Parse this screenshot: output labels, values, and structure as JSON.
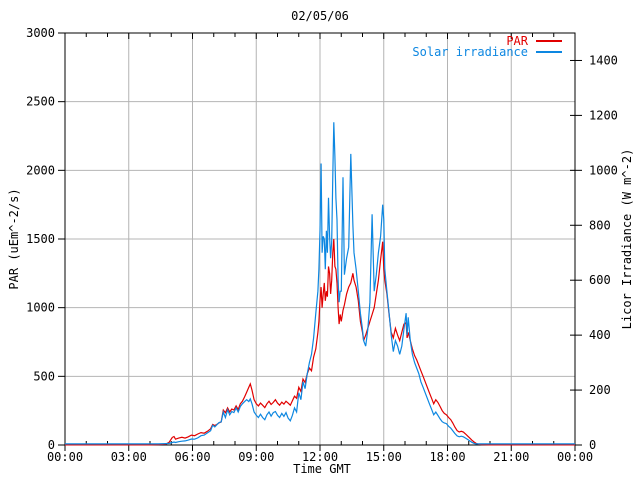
{
  "title": "02/05/06",
  "colors": {
    "par": "#e10000",
    "solar": "#0d87e1",
    "grid": "#b4b4b4",
    "frame": "#000000",
    "background": "#ffffff"
  },
  "legend": {
    "entries": [
      {
        "label": "PAR",
        "color": "#e10000"
      },
      {
        "label": "Solar irradiance",
        "color": "#0d87e1"
      }
    ]
  },
  "chart_data": {
    "type": "line",
    "title": "02/05/06",
    "xlabel": "Time GMT",
    "ylabel_left": "PAR (uEm^-2/s)",
    "ylabel_right": "Licor Irradiance (W m^-2)",
    "x_ticks": [
      "00:00",
      "03:00",
      "06:00",
      "09:00",
      "12:00",
      "15:00",
      "18:00",
      "21:00",
      "00:00"
    ],
    "x_tick_hours": [
      0,
      3,
      6,
      9,
      12,
      15,
      18,
      21,
      24
    ],
    "x_range_hours": [
      0,
      24
    ],
    "y_left_ticks": [
      0,
      500,
      1000,
      1500,
      2000,
      2500,
      3000
    ],
    "y_left_range": [
      0,
      3000
    ],
    "y_right_ticks": [
      0,
      200,
      400,
      600,
      800,
      1000,
      1200,
      1400
    ],
    "y_right_range": [
      0,
      1500
    ],
    "grid": true,
    "legend_position": "top-right-inside",
    "x_hours": [
      0,
      0.5,
      1,
      1.5,
      2,
      2.5,
      3,
      3.5,
      4,
      4.4,
      4.75,
      4.9,
      5.05,
      5.13,
      5.2,
      5.35,
      5.5,
      5.65,
      5.8,
      5.95,
      6.1,
      6.25,
      6.4,
      6.55,
      6.7,
      6.85,
      6.95,
      7.05,
      7.15,
      7.25,
      7.35,
      7.45,
      7.55,
      7.65,
      7.75,
      7.85,
      7.95,
      8.05,
      8.15,
      8.25,
      8.35,
      8.45,
      8.55,
      8.65,
      8.72,
      8.8,
      8.9,
      9.0,
      9.1,
      9.2,
      9.3,
      9.4,
      9.5,
      9.6,
      9.7,
      9.8,
      9.9,
      10.0,
      10.1,
      10.2,
      10.3,
      10.4,
      10.5,
      10.6,
      10.7,
      10.8,
      10.9,
      11.0,
      11.1,
      11.2,
      11.3,
      11.4,
      11.5,
      11.6,
      11.7,
      11.8,
      11.9,
      11.95,
      12.0,
      12.05,
      12.1,
      12.15,
      12.2,
      12.25,
      12.3,
      12.35,
      12.4,
      12.45,
      12.5,
      12.55,
      12.6,
      12.65,
      12.7,
      12.75,
      12.8,
      12.85,
      12.9,
      12.95,
      13.0,
      13.08,
      13.15,
      13.25,
      13.35,
      13.45,
      13.55,
      13.6,
      13.7,
      13.8,
      13.9,
      14.0,
      14.05,
      14.15,
      14.25,
      14.35,
      14.45,
      14.55,
      14.65,
      14.75,
      14.85,
      14.95,
      15.0,
      15.05,
      15.15,
      15.25,
      15.35,
      15.45,
      15.55,
      15.65,
      15.75,
      15.85,
      15.95,
      16.05,
      16.1,
      16.15,
      16.25,
      16.35,
      16.45,
      16.55,
      16.65,
      16.75,
      16.85,
      16.95,
      17.05,
      17.15,
      17.25,
      17.35,
      17.45,
      17.55,
      17.65,
      17.75,
      17.85,
      17.95,
      18.05,
      18.15,
      18.25,
      18.35,
      18.45,
      18.55,
      18.65,
      18.75,
      18.85,
      18.95,
      19.05,
      19.15,
      19.25,
      19.35,
      19.45,
      19.6,
      20.0,
      20.5,
      21.0,
      21.5,
      22.0,
      22.5,
      23.0,
      23.5,
      24.0
    ],
    "series": [
      {
        "name": "PAR",
        "axis": "left",
        "color": "#e10000",
        "units": "uEm^-2/s",
        "values": [
          1,
          1,
          1,
          1,
          1,
          1,
          1,
          1,
          1,
          2,
          6,
          20,
          55,
          62,
          42,
          50,
          56,
          50,
          60,
          72,
          68,
          80,
          90,
          86,
          100,
          118,
          150,
          142,
          150,
          162,
          168,
          255,
          235,
          270,
          240,
          262,
          255,
          285,
          258,
          300,
          318,
          350,
          385,
          420,
          445,
          400,
          330,
          300,
          285,
          305,
          290,
          272,
          300,
          318,
          295,
          310,
          330,
          305,
          290,
          312,
          298,
          318,
          305,
          290,
          322,
          355,
          340,
          420,
          390,
          480,
          455,
          520,
          560,
          540,
          640,
          700,
          820,
          900,
          1050,
          1150,
          1000,
          1100,
          1180,
          1050,
          1120,
          1080,
          1300,
          1250,
          1100,
          1200,
          1400,
          1500,
          1300,
          1280,
          1180,
          1000,
          880,
          950,
          900,
          980,
          1020,
          1100,
          1150,
          1180,
          1250,
          1200,
          1150,
          1050,
          900,
          820,
          760,
          800,
          850,
          900,
          950,
          1000,
          1100,
          1200,
          1350,
          1480,
          1280,
          1200,
          1100,
          950,
          820,
          780,
          850,
          800,
          760,
          820,
          880,
          890,
          780,
          820,
          760,
          700,
          650,
          620,
          580,
          540,
          500,
          460,
          420,
          380,
          340,
          300,
          330,
          310,
          280,
          250,
          230,
          220,
          200,
          185,
          160,
          130,
          105,
          95,
          100,
          95,
          80,
          65,
          50,
          35,
          22,
          12,
          6,
          3,
          1,
          1,
          1,
          1,
          1,
          1,
          1,
          1,
          1
        ]
      },
      {
        "name": "Solar irradiance",
        "axis": "right",
        "color": "#0d87e1",
        "units": "W m^-2",
        "values": [
          4,
          4,
          4,
          4,
          4,
          4,
          4,
          4,
          4,
          4,
          5,
          6,
          9,
          11,
          9,
          12,
          14,
          15,
          18,
          22,
          21,
          26,
          34,
          36,
          44,
          52,
          72,
          66,
          74,
          82,
          84,
          120,
          100,
          128,
          110,
          122,
          118,
          135,
          120,
          140,
          150,
          158,
          165,
          158,
          168,
          150,
          120,
          108,
          100,
          112,
          100,
          92,
          110,
          120,
          105,
          118,
          122,
          108,
          100,
          115,
          104,
          118,
          98,
          88,
          108,
          135,
          120,
          190,
          165,
          230,
          205,
          260,
          300,
          330,
          390,
          480,
          560,
          640,
          780,
          1025,
          700,
          760,
          750,
          640,
          780,
          700,
          900,
          760,
          680,
          740,
          980,
          1175,
          1050,
          900,
          820,
          600,
          520,
          560,
          560,
          975,
          620,
          680,
          720,
          1060,
          800,
          700,
          640,
          560,
          480,
          420,
          380,
          360,
          420,
          520,
          840,
          560,
          620,
          700,
          760,
          875,
          820,
          640,
          560,
          480,
          400,
          340,
          380,
          360,
          330,
          360,
          420,
          480,
          400,
          465,
          380,
          330,
          300,
          280,
          260,
          230,
          210,
          190,
          170,
          150,
          130,
          110,
          120,
          108,
          95,
          85,
          80,
          78,
          68,
          62,
          52,
          42,
          33,
          30,
          32,
          30,
          25,
          20,
          15,
          10,
          6,
          4,
          4,
          4,
          4,
          4,
          4,
          4,
          4,
          4,
          4,
          4,
          4
        ]
      }
    ]
  }
}
